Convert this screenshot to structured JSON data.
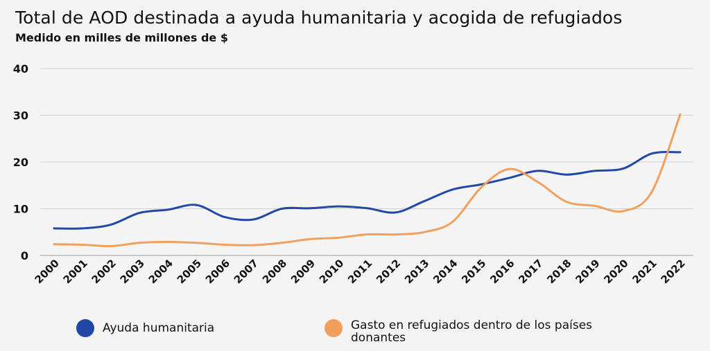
{
  "title": "Total de AOD destinada a ayuda humanitaria y acogida de refugiados",
  "subtitle": "Medido en milles de millones de $",
  "chart_data": {
    "type": "line",
    "x": [
      "2000",
      "2001",
      "2002",
      "2003",
      "2004",
      "2005",
      "2006",
      "2007",
      "2008",
      "2009",
      "2010",
      "2011",
      "2012",
      "2013",
      "2014",
      "2015",
      "2016",
      "2017",
      "2018",
      "2019",
      "2020",
      "2021",
      "2022"
    ],
    "ylim": [
      0,
      40
    ],
    "yticks": [
      0,
      10,
      20,
      30,
      40
    ],
    "grid": true,
    "legend": "bottom",
    "series": [
      {
        "name": "Ayuda humanitaria",
        "color": "#2148a6",
        "values": [
          5.8,
          5.8,
          6.6,
          9.1,
          9.8,
          10.8,
          8.2,
          7.7,
          10.0,
          10.1,
          10.5,
          10.1,
          9.2,
          11.6,
          14.1,
          15.2,
          16.6,
          18.1,
          17.3,
          18.1,
          18.6,
          21.8,
          22.1
        ]
      },
      {
        "name": "Gasto en refugiados dentro de los países donantes",
        "color": "#f0a05c",
        "values": [
          2.4,
          2.3,
          2.0,
          2.7,
          2.9,
          2.7,
          2.3,
          2.2,
          2.7,
          3.5,
          3.8,
          4.5,
          4.5,
          5.0,
          7.2,
          14.5,
          18.5,
          15.7,
          11.5,
          10.6,
          9.5,
          13.6,
          30.2
        ]
      }
    ]
  }
}
